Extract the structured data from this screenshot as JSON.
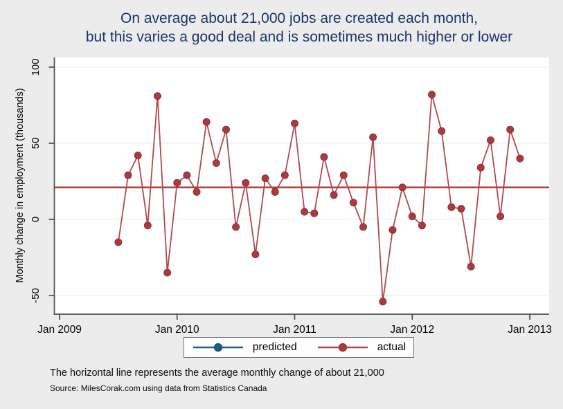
{
  "title": {
    "line1": "On average about 21,000 jobs are created each month,",
    "line2": "but this varies a good deal and is sometimes much higher or lower"
  },
  "caption": "The horizontal line represents the average monthly change of about 21,000",
  "source": "Source: MilesCorak.com using data from Statistics Canada",
  "legend": {
    "predicted_label": "predicted",
    "actual_label": "actual"
  },
  "colors": {
    "page_background": "#ececec",
    "plot_background": "#ffffff",
    "title_text": "#17356d",
    "axis": "#4d4d4d",
    "gridline": "#e7f2f1",
    "predicted_line": "#1b5e80",
    "predicted_marker_edge": "#14506e",
    "actual_line": "#b2484b",
    "actual_marker": "#a93b40",
    "actual_marker_edge": "#8e3338",
    "average_line": "#b0413e"
  },
  "chart_data": {
    "type": "line",
    "title": "On average about 21,000 jobs are created each month, but this varies a good deal and is sometimes much higher or lower",
    "xlabel": "",
    "ylabel": "Monthly change in employment (thousands)",
    "y_ticks": [
      100,
      50,
      0,
      -50
    ],
    "y_tick_labels": [
      "100",
      "50",
      "0",
      "-50"
    ],
    "ylim": [
      -62,
      108
    ],
    "x_tick_labels": [
      "Jan 2009",
      "Jan 2010",
      "Jan 2011",
      "Jan 2012",
      "Jan 2013"
    ],
    "x_tick_month_index": [
      0,
      12,
      24,
      36,
      48
    ],
    "grid": true,
    "legend_position": "bottom",
    "average_value": 21,
    "start_month_index_from_jan2009": 6,
    "series": [
      {
        "name": "predicted",
        "color": "#1b5e80",
        "months": [],
        "values": []
      },
      {
        "name": "actual",
        "color": "#b2484b",
        "months": [
          "Jul 2009",
          "Aug 2009",
          "Sep 2009",
          "Oct 2009",
          "Nov 2009",
          "Dec 2009",
          "Jan 2010",
          "Feb 2010",
          "Mar 2010",
          "Apr 2010",
          "May 2010",
          "Jun 2010",
          "Jul 2010",
          "Aug 2010",
          "Sep 2010",
          "Oct 2010",
          "Nov 2010",
          "Dec 2010",
          "Jan 2011",
          "Feb 2011",
          "Mar 2011",
          "Apr 2011",
          "May 2011",
          "Jun 2011",
          "Jul 2011",
          "Aug 2011",
          "Sep 2011",
          "Oct 2011",
          "Nov 2011",
          "Dec 2011",
          "Jan 2012",
          "Feb 2012",
          "Mar 2012",
          "Apr 2012",
          "May 2012",
          "Jun 2012",
          "Jul 2012",
          "Aug 2012",
          "Sep 2012",
          "Oct 2012",
          "Nov 2012",
          "Dec 2012"
        ],
        "values": [
          -15,
          29,
          42,
          -4,
          81,
          -35,
          24,
          29,
          18,
          64,
          37,
          59,
          -5,
          24,
          -23,
          27,
          18,
          29,
          63,
          5,
          4,
          41,
          16,
          29,
          11,
          -5,
          54,
          -54,
          -7,
          21,
          2,
          -4,
          82,
          58,
          8,
          7,
          -31,
          34,
          52,
          2,
          59,
          40
        ]
      }
    ]
  }
}
